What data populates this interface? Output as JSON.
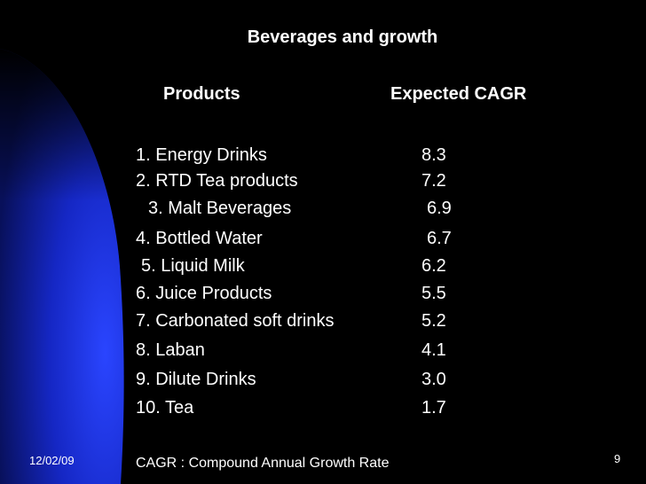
{
  "slide": {
    "title": "Beverages and growth",
    "headers": {
      "products": "Products",
      "cagr": "Expected CAGR"
    },
    "rows": [
      {
        "product": "1. Energy Drinks",
        "cagr": "8.3"
      },
      {
        "product": "2. RTD Tea products",
        "cagr": "7.2"
      },
      {
        "product": "3. Malt Beverages",
        "cagr": "6.9"
      },
      {
        "product": "4. Bottled Water",
        "cagr": "6.7"
      },
      {
        "product": "5. Liquid Milk",
        "cagr": "6.2"
      },
      {
        "product": "6. Juice Products",
        "cagr": "5.5"
      },
      {
        "product": "7. Carbonated soft drinks",
        "cagr": "5.2"
      },
      {
        "product": "8. Laban",
        "cagr": "4.1"
      },
      {
        "product": "9. Dilute Drinks",
        "cagr": "3.0"
      },
      {
        "product": "10. Tea",
        "cagr": "1.7"
      }
    ],
    "footnote": "CAGR : Compound Annual Growth Rate",
    "date": "12/02/09",
    "page_number": "9"
  },
  "colors": {
    "background": "#000000",
    "accent_blue": "#1a2fd6",
    "text": "#ffffff"
  }
}
